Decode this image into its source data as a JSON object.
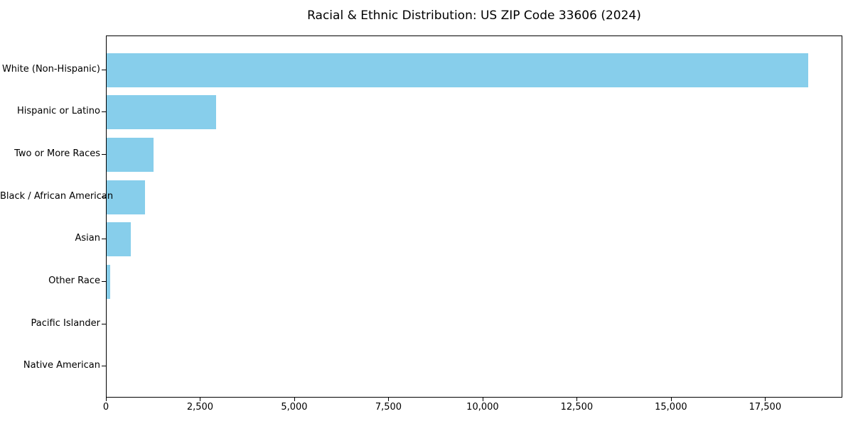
{
  "chart_data": {
    "type": "bar",
    "orientation": "horizontal",
    "title": "Racial & Ethnic Distribution: US ZIP Code 33606 (2024)",
    "categories": [
      "White (Non-Hispanic)",
      "Hispanic or Latino",
      "Two or More Races",
      "Black / African American",
      "Asian",
      "Other Race",
      "Pacific Islander",
      "Native American"
    ],
    "values": [
      18620,
      2900,
      1250,
      1020,
      640,
      100,
      0,
      0
    ],
    "xlabel": "",
    "ylabel": "",
    "xlim": [
      0,
      19550
    ],
    "x_ticks": [
      0,
      2500,
      5000,
      7500,
      10000,
      12500,
      15000,
      17500
    ],
    "x_tick_labels": [
      "0",
      "2,500",
      "5,000",
      "7,500",
      "10,000",
      "12,500",
      "15,000",
      "17,500"
    ],
    "bar_color": "#87ceeb",
    "axis_color": "#000000",
    "text_color": "#000000",
    "background_color": "#ffffff",
    "grid": false
  }
}
